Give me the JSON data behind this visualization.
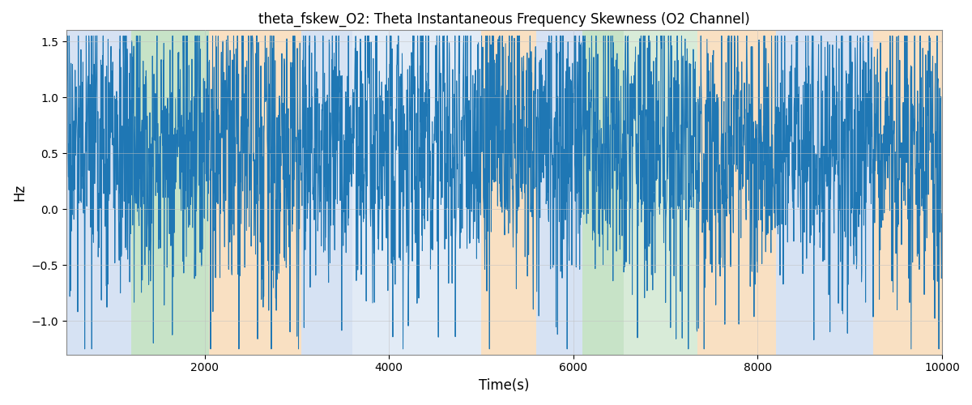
{
  "title": "theta_fskew_O2: Theta Instantaneous Frequency Skewness (O2 Channel)",
  "xlabel": "Time(s)",
  "ylabel": "Hz",
  "xlim": [
    500,
    10000
  ],
  "ylim": [
    -1.3,
    1.6
  ],
  "line_color": "#1f77b4",
  "line_width": 0.75,
  "background_regions": [
    {
      "xmin": 500,
      "xmax": 1200,
      "color": "#aec6e8",
      "alpha": 0.5
    },
    {
      "xmin": 1200,
      "xmax": 2050,
      "color": "#90c890",
      "alpha": 0.5
    },
    {
      "xmin": 2050,
      "xmax": 3050,
      "color": "#f5c890",
      "alpha": 0.55
    },
    {
      "xmin": 3050,
      "xmax": 3600,
      "color": "#aec6e8",
      "alpha": 0.5
    },
    {
      "xmin": 3600,
      "xmax": 5000,
      "color": "#aec6e8",
      "alpha": 0.35
    },
    {
      "xmin": 5000,
      "xmax": 5600,
      "color": "#f5c890",
      "alpha": 0.55
    },
    {
      "xmin": 5600,
      "xmax": 6100,
      "color": "#aec6e8",
      "alpha": 0.5
    },
    {
      "xmin": 6100,
      "xmax": 6550,
      "color": "#90c890",
      "alpha": 0.5
    },
    {
      "xmin": 6550,
      "xmax": 7350,
      "color": "#90c890",
      "alpha": 0.35
    },
    {
      "xmin": 7350,
      "xmax": 8200,
      "color": "#f5c890",
      "alpha": 0.55
    },
    {
      "xmin": 8200,
      "xmax": 9250,
      "color": "#aec6e8",
      "alpha": 0.5
    },
    {
      "xmin": 9250,
      "xmax": 10000,
      "color": "#f5c890",
      "alpha": 0.55
    }
  ],
  "yticks": [
    -1.0,
    -0.5,
    0.0,
    0.5,
    1.0,
    1.5
  ],
  "xticks": [
    2000,
    4000,
    6000,
    8000,
    10000
  ],
  "grid_color": "#c0c0c0",
  "grid_alpha": 0.7,
  "seed": 17,
  "n_signal": 3000
}
